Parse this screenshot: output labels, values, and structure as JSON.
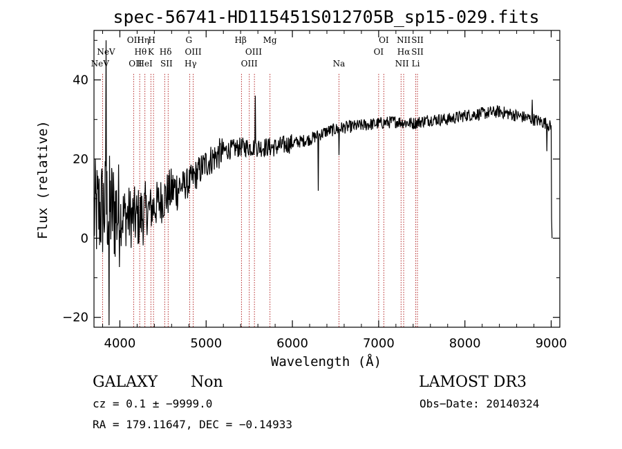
{
  "chart_data": {
    "type": "line",
    "title": "spec-56741-HD115451S012705B_sp15-029.fits",
    "xlabel": "Wavelength (Å)",
    "ylabel": "Flux (relative)",
    "xlim": [
      3700,
      9100
    ],
    "ylim": [
      -22.5,
      52.5
    ],
    "xticks": [
      4000,
      5000,
      6000,
      7000,
      8000,
      9000
    ],
    "xtick_labels": [
      "4000",
      "5000",
      "6000",
      "7000",
      "8000",
      "9000"
    ],
    "yticks": [
      -20,
      0,
      20,
      40
    ],
    "ytick_labels": [
      "−20",
      "0",
      "20",
      "40"
    ],
    "spectral_lines": [
      {
        "name": "NeV",
        "wavelength": 3770,
        "tier": 2
      },
      {
        "name": "NeV",
        "wavelength": 3840,
        "tier": 1
      },
      {
        "name": "OII",
        "wavelength": 4160,
        "tier": 0
      },
      {
        "name": "OII",
        "wavelength": 4180,
        "tier": 2
      },
      {
        "name": "Hθ",
        "wavelength": 4240,
        "tier": 1
      },
      {
        "name": "Hη",
        "wavelength": 4270,
        "tier": 0
      },
      {
        "name": "HeI",
        "wavelength": 4290,
        "tier": 2
      },
      {
        "name": "H",
        "wavelength": 4370,
        "tier": 0
      },
      {
        "name": "K",
        "wavelength": 4360,
        "tier": 1
      },
      {
        "name": "Hδ",
        "wavelength": 4530,
        "tier": 1
      },
      {
        "name": "SII",
        "wavelength": 4540,
        "tier": 2
      },
      {
        "name": "G",
        "wavelength": 4800,
        "tier": 0
      },
      {
        "name": "OIII",
        "wavelength": 4850,
        "tier": 1
      },
      {
        "name": "Hγ",
        "wavelength": 4820,
        "tier": 2
      },
      {
        "name": "Hβ",
        "wavelength": 5400,
        "tier": 0
      },
      {
        "name": "OIII",
        "wavelength": 5550,
        "tier": 1
      },
      {
        "name": "OIII",
        "wavelength": 5500,
        "tier": 2
      },
      {
        "name": "Mg",
        "wavelength": 5740,
        "tier": 0
      },
      {
        "name": "Na",
        "wavelength": 6540,
        "tier": 2
      },
      {
        "name": "OI",
        "wavelength": 7060,
        "tier": 0
      },
      {
        "name": "OI",
        "wavelength": 7000,
        "tier": 1
      },
      {
        "name": "NII",
        "wavelength": 7290,
        "tier": 0
      },
      {
        "name": "SII",
        "wavelength": 7450,
        "tier": 0
      },
      {
        "name": "Hα",
        "wavelength": 7290,
        "tier": 1
      },
      {
        "name": "SII",
        "wavelength": 7450,
        "tier": 1
      },
      {
        "name": "NII",
        "wavelength": 7270,
        "tier": 2
      },
      {
        "name": "Li",
        "wavelength": 7430,
        "tier": 2
      }
    ],
    "line_markers": [
      3800,
      4160,
      4230,
      4290,
      4360,
      4390,
      4520,
      4560,
      4810,
      4850,
      5410,
      5500,
      5560,
      5740,
      6540,
      7000,
      7060,
      7260,
      7290,
      7430,
      7450
    ],
    "continuum": [
      [
        3700,
        6
      ],
      [
        3850,
        8
      ],
      [
        4000,
        6
      ],
      [
        4200,
        5
      ],
      [
        4400,
        8
      ],
      [
        4600,
        12
      ],
      [
        4800,
        14
      ],
      [
        5000,
        19
      ],
      [
        5200,
        22
      ],
      [
        5400,
        23
      ],
      [
        5600,
        23
      ],
      [
        5800,
        23
      ],
      [
        6000,
        24
      ],
      [
        6200,
        25
      ],
      [
        6400,
        27
      ],
      [
        6600,
        28
      ],
      [
        6800,
        28.5
      ],
      [
        7000,
        29
      ],
      [
        7200,
        29.5
      ],
      [
        7400,
        29
      ],
      [
        7600,
        30
      ],
      [
        7800,
        30
      ],
      [
        8000,
        31
      ],
      [
        8200,
        31.5
      ],
      [
        8400,
        32
      ],
      [
        8600,
        31
      ],
      [
        8800,
        30
      ],
      [
        8950,
        29
      ],
      [
        9000,
        28
      ]
    ],
    "features": [
      {
        "x": 6300,
        "value": 12
      },
      {
        "x": 6540,
        "value": 21
      },
      {
        "x": 5570,
        "value": 36
      },
      {
        "x": 8780,
        "value": 35
      },
      {
        "x": 8950,
        "value": 22
      },
      {
        "x": 9005,
        "value": 5
      },
      {
        "x": 9010,
        "value": 0
      },
      {
        "x": 3840,
        "value": 50
      },
      {
        "x": 3875,
        "value": -22
      }
    ]
  },
  "info": {
    "class_label": "GALAXY",
    "subclass_label": "Non",
    "survey_label": "LAMOST DR3",
    "cz_text": "cz = 0.1 ± −9999.0",
    "obs_date_text": "Obs−Date: 20140324",
    "radec_text": "RA = 179.11647, DEC =  −0.14933"
  }
}
